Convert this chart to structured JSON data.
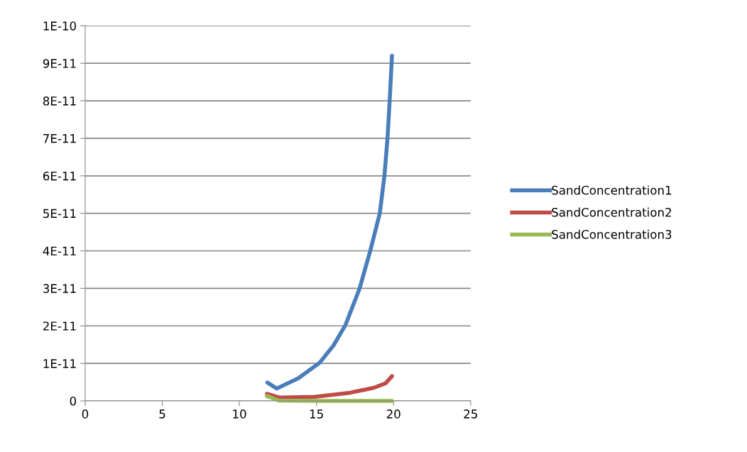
{
  "chart_data": {
    "type": "line",
    "xlim": [
      0,
      25
    ],
    "xticks": [
      0,
      5,
      10,
      15,
      20,
      25
    ],
    "ylim": [
      0,
      1e-10
    ],
    "yticks": [
      {
        "value": 0,
        "label": "0"
      },
      {
        "value": 1e-11,
        "label": "1E-11"
      },
      {
        "value": 2e-11,
        "label": "2E-11"
      },
      {
        "value": 3e-11,
        "label": "3E-11"
      },
      {
        "value": 4e-11,
        "label": "4E-11"
      },
      {
        "value": 5e-11,
        "label": "5E-11"
      },
      {
        "value": 6e-11,
        "label": "6E-11"
      },
      {
        "value": 7e-11,
        "label": "7E-11"
      },
      {
        "value": 8e-11,
        "label": "8E-11"
      },
      {
        "value": 9e-11,
        "label": "9E-11"
      },
      {
        "value": 1e-10,
        "label": "1E-10"
      }
    ],
    "grid": "y",
    "legend": "right",
    "marker": "none",
    "line_style": "solid",
    "series": [
      {
        "name": "SandConcentration1",
        "color": "#4a7ebb",
        "x": [
          11.82,
          12.43,
          13.81,
          15.19,
          16.11,
          16.88,
          17.8,
          18.49,
          19.11,
          19.41,
          19.61,
          19.75,
          19.9
        ],
        "values": [
          4.9e-12,
          3.3e-12,
          6e-12,
          1.01e-11,
          1.48e-11,
          2.02e-11,
          3e-11,
          4e-11,
          5e-11,
          6e-11,
          7e-11,
          8e-11,
          9.2e-11
        ]
      },
      {
        "name": "SandConcentration2",
        "color": "#be4b48",
        "x": [
          11.79,
          12.58,
          14.89,
          17.19,
          18.72,
          19.49,
          19.9
        ],
        "values": [
          1.9e-12,
          9e-13,
          1.1e-12,
          2.2e-12,
          3.5e-12,
          4.7e-12,
          6.6e-12
        ]
      },
      {
        "name": "SandConcentration3",
        "color": "#98b954",
        "x": [
          11.79,
          12.58,
          15.0,
          17.5,
          19.9
        ],
        "values": [
          1.3e-12,
          1e-13,
          0,
          0,
          0
        ]
      }
    ]
  }
}
